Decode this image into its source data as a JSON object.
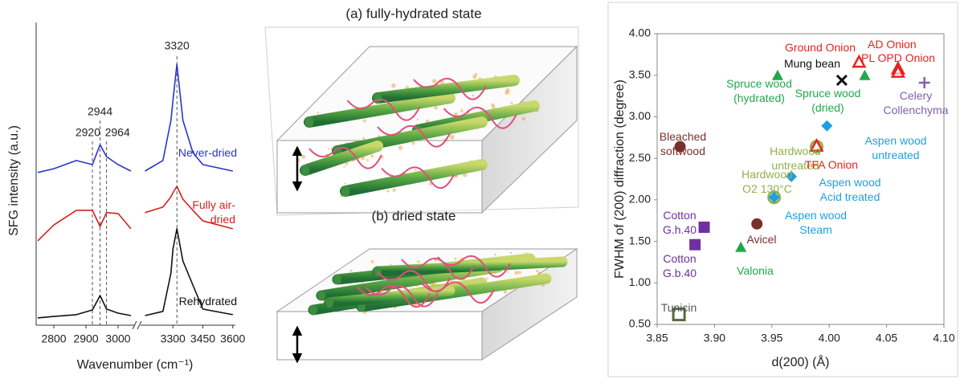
{
  "chart_data": [
    {
      "type": "line",
      "y_label": "SFG intensity (a.u.)",
      "x_label": "Wavenumber (cm⁻¹)",
      "x_segments": [
        {
          "xlim": [
            2745,
            3040
          ],
          "xticks": [
            2800,
            2900,
            3000
          ]
        },
        {
          "xlim": [
            3150,
            3605
          ],
          "xticks": [
            3300,
            3450,
            3600
          ]
        }
      ],
      "ylim": [
        0,
        100
      ],
      "x": [
        2750,
        2800,
        2870,
        2920,
        2944,
        2964,
        3000,
        3040,
        3160,
        3250,
        3290,
        3300,
        3320,
        3350,
        3400,
        3450,
        3600
      ],
      "series": [
        {
          "name": "Never-dried",
          "color": "#2b35c8",
          "values": [
            52.1,
            53.4,
            56.2,
            54.8,
            61.6,
            57.5,
            54.8,
            52.6,
            52.6,
            56.2,
            69.9,
            76.7,
            89.0,
            69.9,
            58.9,
            54.8,
            52.6
          ]
        },
        {
          "name": "Fully air-dried",
          "color": "#d62020",
          "values": [
            28.8,
            34.2,
            39.2,
            39.2,
            33.7,
            38.4,
            38.1,
            32.9,
            38.4,
            40.3,
            43.8,
            45.2,
            47.4,
            43.0,
            39.2,
            35.6,
            32.9
          ]
        },
        {
          "name": "Rehydrated",
          "color": "#111111",
          "values": [
            2.5,
            3.0,
            3.6,
            5.2,
            10.1,
            5.5,
            4.1,
            3.3,
            3.3,
            4.7,
            17.8,
            26.0,
            32.9,
            21.9,
            13.7,
            5.5,
            3.6
          ]
        }
      ],
      "reference_lines": [
        2920,
        2944,
        2964,
        3320
      ]
    },
    {
      "type": "scatter",
      "x_label": "d(200) (Å)",
      "y_label": "FWHM of (200) diffraction (degree)",
      "xlim": [
        3.85,
        4.1
      ],
      "xticks": [
        3.85,
        {
          "value": 3.9,
          "label": "3.90"
        },
        3.95,
        {
          "value": 4.0,
          "label": "4.00"
        },
        4.05,
        {
          "value": 4.1,
          "label": "4.10"
        }
      ],
      "ylim": [
        0.5,
        4.0
      ],
      "yticks": [
        {
          "value": 0.5,
          "label": "0.50"
        },
        {
          "value": 1.0,
          "label": "1.00"
        },
        {
          "value": 1.5,
          "label": "1.50"
        },
        {
          "value": 2.0,
          "label": "2.00"
        },
        {
          "value": 2.5,
          "label": "2.50"
        },
        {
          "value": 3.0,
          "label": "3.00"
        },
        {
          "value": 3.5,
          "label": "3.50"
        },
        {
          "value": 4.0,
          "label": "4.00"
        }
      ],
      "series": [
        {
          "name": "Ground Onion",
          "color": "#e8221e",
          "marker": "triangle-open",
          "x": [
            4.026
          ],
          "values": [
            3.66
          ]
        },
        {
          "name": "Mung bean",
          "color": "#111111",
          "marker": "cross",
          "x": [
            4.011
          ],
          "values": [
            3.44
          ]
        },
        {
          "name": "AD Onion",
          "color": "#e8221e",
          "marker": "triangle-open",
          "x": [
            4.06
          ],
          "values": [
            3.58
          ]
        },
        {
          "name": "PL OPD Onion",
          "color": "#e8221e",
          "marker": "triangle-open",
          "x": [
            4.06
          ],
          "values": [
            3.54
          ]
        },
        {
          "name": "Spruce wood (hydrated)",
          "color": "#22a84a",
          "marker": "triangle",
          "x": [
            3.955
          ],
          "values": [
            3.5
          ]
        },
        {
          "name": "Spruce wood (dried)",
          "color": "#22a84a",
          "marker": "triangle",
          "x": [
            4.031
          ],
          "values": [
            3.5
          ]
        },
        {
          "name": "Celery Collenchyma",
          "color": "#8060b0",
          "marker": "plus",
          "x": [
            4.083
          ],
          "values": [
            3.41
          ]
        },
        {
          "name": "Bleached softwood",
          "color": "#7b2f2a",
          "marker": "circle",
          "x": [
            3.87
          ],
          "values": [
            2.64
          ]
        },
        {
          "name": "Hardwood untreated",
          "color": "#92b04a",
          "marker": "circle-open",
          "x": [
            3.989
          ],
          "values": [
            2.64
          ]
        },
        {
          "name": "TFA Onion",
          "color": "#e8221e",
          "marker": "triangle-open",
          "x": [
            3.989
          ],
          "values": [
            2.65
          ]
        },
        {
          "name": "Aspen wood untreated",
          "color": "#1f9fe0",
          "marker": "diamond",
          "x": [
            3.998
          ],
          "values": [
            2.89
          ]
        },
        {
          "name": "Aspen wood Acid treated",
          "color": "#1f9fe0",
          "marker": "diamond",
          "x": [
            3.967
          ],
          "values": [
            2.28
          ]
        },
        {
          "name": "Hardwood O2 130°C",
          "color": "#92b04a",
          "marker": "circle-open",
          "x": [
            3.952
          ],
          "values": [
            2.03
          ]
        },
        {
          "name": "Aspen wood Steam",
          "color": "#1f9fe0",
          "marker": "diamond",
          "x": [
            3.952
          ],
          "values": [
            2.03
          ]
        },
        {
          "name": "Cotton G.h.40",
          "color": "#7030a0",
          "marker": "square",
          "x": [
            3.891
          ],
          "values": [
            1.67
          ]
        },
        {
          "name": "Cotton G.b.40",
          "color": "#7030a0",
          "marker": "square",
          "x": [
            3.883
          ],
          "values": [
            1.46
          ]
        },
        {
          "name": "Avicel",
          "color": "#7b2f2a",
          "marker": "circle",
          "x": [
            3.937
          ],
          "values": [
            1.71
          ]
        },
        {
          "name": "Valonia",
          "color": "#22a84a",
          "marker": "triangle",
          "x": [
            3.923
          ],
          "values": [
            1.43
          ]
        },
        {
          "name": "Tunicin",
          "color": "#5a6a3a",
          "marker": "square-open",
          "x": [
            3.869
          ],
          "values": [
            0.62
          ]
        }
      ]
    }
  ],
  "illustration": {
    "panel_a": "(a) fully-hydrated state",
    "panel_b": "(b) dried state"
  }
}
